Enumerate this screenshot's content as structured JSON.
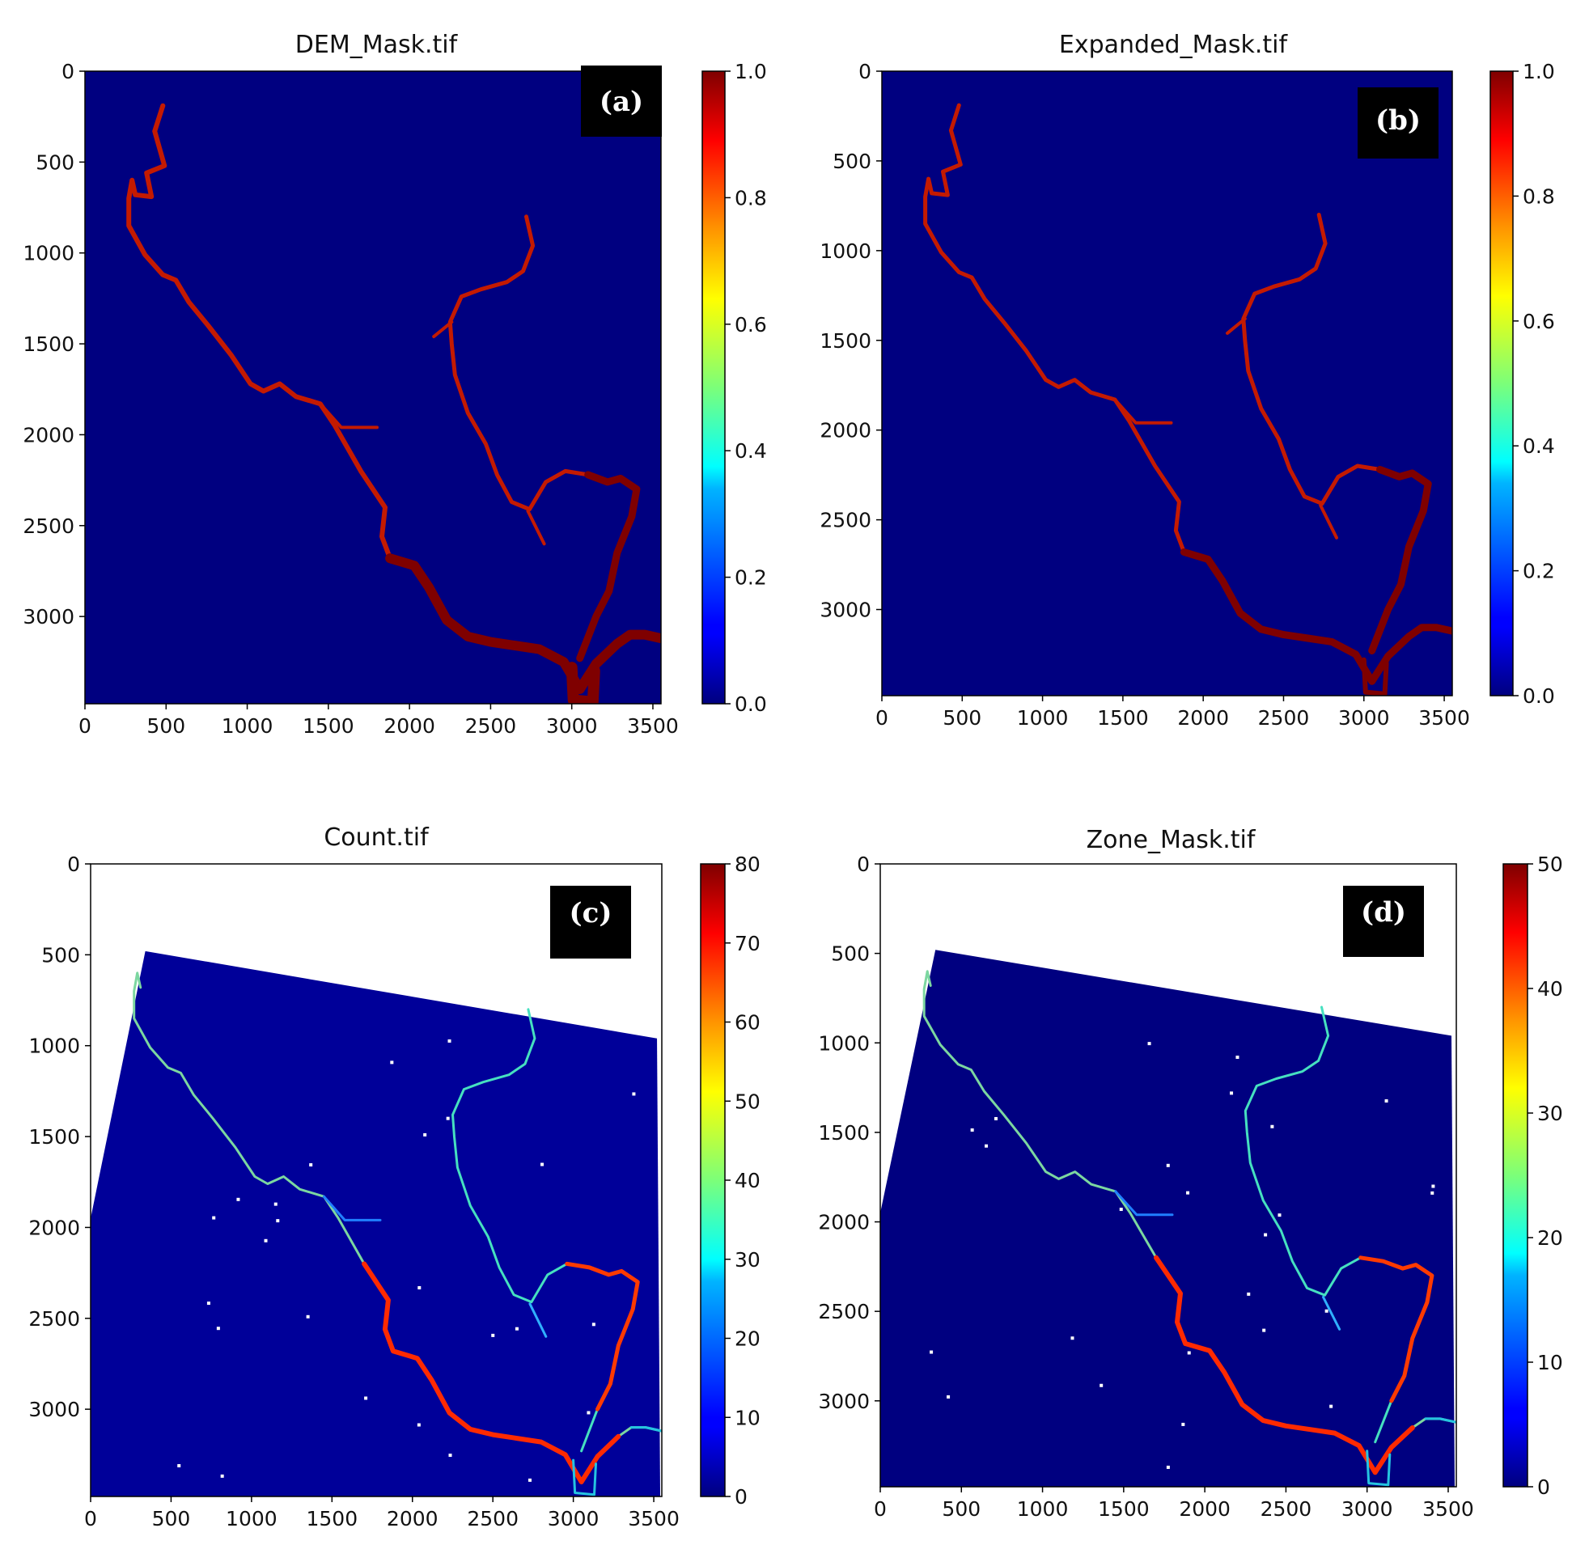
{
  "chart_data": [
    {
      "type": "heatmap",
      "title": "DEM_Mask.tif",
      "panel_label": "(a)",
      "colormap": "jet",
      "xlim": [
        0,
        3550
      ],
      "ylim": [
        3480,
        0
      ],
      "x_ticks": [
        "0",
        "500",
        "1000",
        "1500",
        "2000",
        "2500",
        "3000",
        "3500"
      ],
      "y_ticks": [
        "0",
        "500",
        "1000",
        "1500",
        "2000",
        "2500",
        "3000"
      ],
      "colorbar": {
        "range": [
          0.0,
          1.0
        ],
        "ticks": [
          "0.0",
          "0.2",
          "0.4",
          "0.6",
          "0.8",
          "1.0"
        ]
      },
      "background_value": 0.0,
      "footprint": "full"
    },
    {
      "type": "heatmap",
      "title": "Expanded_Mask.tif",
      "panel_label": "(b)",
      "colormap": "jet",
      "xlim": [
        0,
        3550
      ],
      "ylim": [
        3480,
        0
      ],
      "x_ticks": [
        "0",
        "500",
        "1000",
        "1500",
        "2000",
        "2500",
        "3000",
        "3500"
      ],
      "y_ticks": [
        "0",
        "500",
        "1000",
        "1500",
        "2000",
        "2500",
        "3000"
      ],
      "colorbar": {
        "range": [
          0.0,
          1.0
        ],
        "ticks": [
          "0.0",
          "0.2",
          "0.4",
          "0.6",
          "0.8",
          "1.0"
        ]
      },
      "background_value": 0.0,
      "footprint": "full"
    },
    {
      "type": "heatmap",
      "title": "Count.tif",
      "panel_label": "(c)",
      "colormap": "jet",
      "xlim": [
        0,
        3550
      ],
      "ylim": [
        3480,
        0
      ],
      "x_ticks": [
        "0",
        "500",
        "1000",
        "1500",
        "2000",
        "2500",
        "3000",
        "3500"
      ],
      "y_ticks": [
        "0",
        "500",
        "1000",
        "1500",
        "2000",
        "2500",
        "3000"
      ],
      "colorbar": {
        "range": [
          0,
          80
        ],
        "ticks": [
          "0",
          "10",
          "20",
          "30",
          "40",
          "50",
          "60",
          "70",
          "80"
        ]
      },
      "background_value": 2,
      "footprint": "tilted"
    },
    {
      "type": "heatmap",
      "title": "Zone_Mask.tif",
      "panel_label": "(d)",
      "colormap": "jet",
      "xlim": [
        0,
        3550
      ],
      "ylim": [
        3480,
        0
      ],
      "x_ticks": [
        "0",
        "500",
        "1000",
        "1500",
        "2000",
        "2500",
        "3000",
        "3500"
      ],
      "y_ticks": [
        "0",
        "500",
        "1000",
        "1500",
        "2000",
        "2500",
        "3000"
      ],
      "colorbar": {
        "range": [
          0,
          50
        ],
        "ticks": [
          "0",
          "10",
          "20",
          "30",
          "40",
          "50"
        ]
      },
      "background_value": 0,
      "footprint": "tilted"
    }
  ],
  "river_network": {
    "main_channel": [
      [
        480,
        190
      ],
      [
        430,
        330
      ],
      [
        490,
        520
      ],
      [
        380,
        560
      ],
      [
        410,
        690
      ],
      [
        310,
        680
      ],
      [
        290,
        600
      ],
      [
        270,
        700
      ],
      [
        270,
        850
      ],
      [
        370,
        1010
      ],
      [
        480,
        1120
      ],
      [
        560,
        1150
      ],
      [
        640,
        1270
      ],
      [
        760,
        1400
      ],
      [
        900,
        1560
      ],
      [
        1020,
        1720
      ],
      [
        1100,
        1760
      ],
      [
        1200,
        1720
      ],
      [
        1300,
        1790
      ],
      [
        1450,
        1830
      ],
      [
        1540,
        1950
      ],
      [
        1700,
        2200
      ],
      [
        1850,
        2400
      ],
      [
        1830,
        2560
      ],
      [
        1880,
        2680
      ],
      [
        2030,
        2720
      ],
      [
        2120,
        2840
      ],
      [
        2230,
        3020
      ],
      [
        2360,
        3110
      ],
      [
        2500,
        3140
      ],
      [
        2650,
        3160
      ],
      [
        2800,
        3180
      ],
      [
        2950,
        3250
      ],
      [
        3050,
        3400
      ],
      [
        3150,
        3260
      ],
      [
        3280,
        3150
      ],
      [
        3360,
        3100
      ],
      [
        3450,
        3100
      ],
      [
        3550,
        3120
      ]
    ],
    "lower_loop": [
      [
        3000,
        3280
      ],
      [
        3010,
        3460
      ],
      [
        3130,
        3470
      ],
      [
        3140,
        3300
      ]
    ],
    "east_channel": [
      [
        3050,
        3230
      ],
      [
        3150,
        3000
      ],
      [
        3230,
        2860
      ],
      [
        3280,
        2650
      ],
      [
        3370,
        2450
      ],
      [
        3400,
        2300
      ],
      [
        3300,
        2240
      ],
      [
        3220,
        2260
      ],
      [
        3100,
        2220
      ],
      [
        2960,
        2200
      ],
      [
        2840,
        2260
      ],
      [
        2740,
        2410
      ],
      [
        2630,
        2370
      ],
      [
        2540,
        2220
      ],
      [
        2470,
        2050
      ],
      [
        2360,
        1880
      ],
      [
        2280,
        1670
      ],
      [
        2260,
        1500
      ],
      [
        2250,
        1380
      ],
      [
        2320,
        1240
      ],
      [
        2440,
        1200
      ],
      [
        2600,
        1160
      ],
      [
        2700,
        1100
      ],
      [
        2760,
        960
      ],
      [
        2720,
        800
      ]
    ],
    "tributary_short": [
      [
        2730,
        2420
      ],
      [
        2830,
        2600
      ]
    ],
    "tributary_midwest": [
      [
        1450,
        1830
      ],
      [
        1580,
        1960
      ],
      [
        1800,
        1960
      ]
    ],
    "tributary_north": [
      [
        2260,
        1380
      ],
      [
        2150,
        1460
      ]
    ],
    "tilted_footprint_corners": [
      [
        340,
        480
      ],
      [
        3520,
        960
      ],
      [
        3540,
        3480
      ],
      [
        0,
        3480
      ],
      [
        0,
        1950
      ]
    ]
  }
}
